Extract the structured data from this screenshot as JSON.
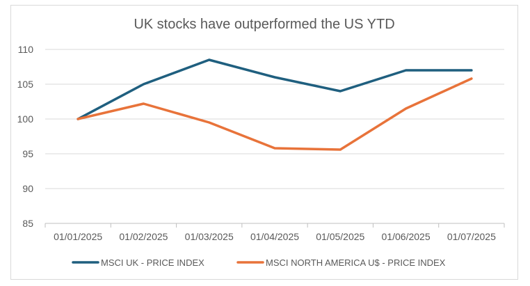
{
  "chart_data": {
    "type": "line",
    "title": "UK stocks have outperformed the US YTD",
    "xlabel": "",
    "ylabel": "",
    "categories": [
      "01/01/2025",
      "01/02/2025",
      "01/03/2025",
      "01/04/2025",
      "01/05/2025",
      "01/06/2025",
      "01/07/2025"
    ],
    "ylim": [
      85,
      110
    ],
    "yticks": [
      "85",
      "90",
      "95",
      "100",
      "105",
      "110"
    ],
    "grid": true,
    "legend": "bottom",
    "series": [
      {
        "name": "MSCI UK - PRICE INDEX",
        "color": "#1f5f7f",
        "values": [
          100,
          105,
          108.5,
          106,
          104,
          107,
          107
        ]
      },
      {
        "name": "MSCI NORTH AMERICA U$ - PRICE INDEX",
        "color": "#e8733a",
        "values": [
          100,
          102.2,
          99.5,
          95.8,
          95.6,
          101.5,
          105.8
        ]
      }
    ]
  }
}
